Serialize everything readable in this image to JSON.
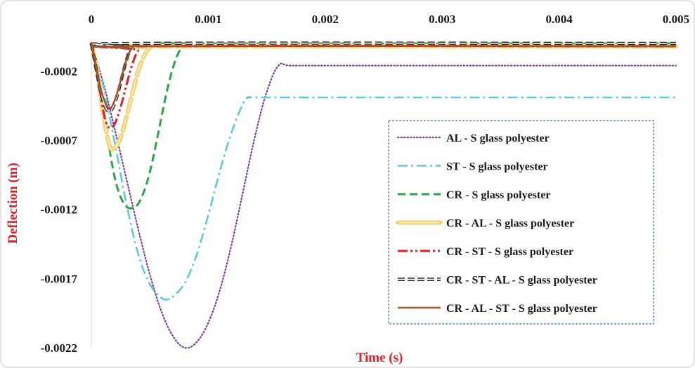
{
  "chart_data": {
    "type": "line",
    "title": "",
    "xlabel": "Time (s)",
    "ylabel": "Deflection (m)",
    "xlim": [
      0,
      0.005
    ],
    "ylim": [
      -0.0022,
      0.0
    ],
    "x_ticks": [
      "0",
      "0.001",
      "0.002",
      "0.003",
      "0.004",
      "0.005"
    ],
    "y_ticks": [
      "-0.0002",
      "-0.0007",
      "-0.0012",
      "-0.0017",
      "-0.0022"
    ],
    "x_tick_values": [
      0,
      0.001,
      0.002,
      0.003,
      0.004,
      0.005
    ],
    "y_tick_values": [
      -0.0002,
      -0.0007,
      -0.0012,
      -0.0017,
      -0.0022
    ],
    "x_axis_position": "top",
    "grid": false,
    "legend_position": "right",
    "colors": {
      "xlabel": "#e31e24",
      "ylabel": "#e31e24",
      "legend_border": "#3d6fc4"
    },
    "series": [
      {
        "name": "AL - S glass polyester",
        "color": "#7b3fa8",
        "style": "dotted",
        "x": [
          0,
          0.0001,
          0.0002,
          0.0003,
          0.0004,
          0.0005,
          0.0006,
          0.0007,
          0.0008,
          0.0009,
          0.001,
          0.0011,
          0.0012,
          0.0013,
          0.0014,
          0.0015,
          0.0016,
          0.0017,
          0.002,
          0.003,
          0.004,
          0.005
        ],
        "y": [
          0,
          -0.00028,
          -0.00062,
          -0.00098,
          -0.00134,
          -0.00167,
          -0.00194,
          -0.00212,
          -0.0022,
          -0.00216,
          -0.00202,
          -0.00178,
          -0.00145,
          -0.00106,
          -0.00067,
          -0.00035,
          -0.00016,
          -0.00016,
          -0.00016,
          -0.00016,
          -0.00016,
          -0.00016
        ]
      },
      {
        "name": "ST - S glass polyester",
        "color": "#5cc8dc",
        "style": "dashdot",
        "x": [
          0,
          0.0001,
          0.0002,
          0.0003,
          0.0004,
          0.0005,
          0.0006,
          0.00066,
          0.0007,
          0.0008,
          0.0009,
          0.001,
          0.0011,
          0.0012,
          0.0013,
          0.00135,
          0.0014,
          0.002,
          0.003,
          0.004,
          0.005
        ],
        "y": [
          0,
          -0.0003,
          -0.00072,
          -0.00116,
          -0.00152,
          -0.00174,
          -0.00184,
          -0.00185,
          -0.00183,
          -0.00173,
          -0.00153,
          -0.00124,
          -0.00092,
          -0.00064,
          -0.00043,
          -0.00039,
          -0.00039,
          -0.00039,
          -0.00039,
          -0.00039,
          -0.00039
        ]
      },
      {
        "name": "CR - S glass polyester",
        "color": "#27a844",
        "style": "dashed",
        "x": [
          0,
          5e-05,
          0.0001,
          0.00015,
          0.0002,
          0.00025,
          0.0003,
          0.00035,
          0.0004,
          0.00045,
          0.0005,
          0.00055,
          0.0006,
          0.00065,
          0.0007,
          0.00075,
          0.0008,
          0.00085,
          0.0009,
          0.005
        ],
        "y": [
          0,
          -0.00018,
          -0.00045,
          -0.00074,
          -0.00097,
          -0.00111,
          -0.00118,
          -0.00119,
          -0.00116,
          -0.00107,
          -0.00093,
          -0.00074,
          -0.00053,
          -0.00033,
          -0.00017,
          -6e-05,
          -1e-05,
          0.0,
          0.0,
          0.0
        ]
      },
      {
        "name": "CR - AL - S glass polyester",
        "color": "#f5c033",
        "style": "dashed-thick",
        "x": [
          0,
          5e-05,
          0.0001,
          0.00015,
          0.00018,
          0.0002,
          0.00025,
          0.0003,
          0.00035,
          0.0004,
          0.00045,
          0.0005,
          0.00055,
          0.005
        ],
        "y": [
          0,
          -0.0002,
          -0.0005,
          -0.00072,
          -0.00077,
          -0.00076,
          -0.00068,
          -0.00053,
          -0.00036,
          -0.0002,
          -9e-05,
          -3e-05,
          -2e-05,
          -2e-05
        ]
      },
      {
        "name": "CR - ST - S glass polyester",
        "color": "#e31e24",
        "style": "dashdotdot",
        "x": [
          0,
          5e-05,
          0.0001,
          0.00013,
          0.00016,
          0.0002,
          0.00025,
          0.0003,
          0.00035,
          0.0004,
          0.00045,
          0.005
        ],
        "y": [
          0,
          -0.00021,
          -0.00048,
          -0.00058,
          -0.00061,
          -0.00058,
          -0.00046,
          -0.0003,
          -0.00015,
          -5e-05,
          -2e-05,
          -2e-05
        ]
      },
      {
        "name": "CR - ST - AL - S glass polyester",
        "color": "#2b2b2b",
        "style": "double-dashed",
        "x": [
          0,
          4e-05,
          8e-05,
          0.00012,
          0.00015,
          0.00018,
          0.00022,
          0.00026,
          0.0003,
          0.00034,
          0.00038,
          0.005
        ],
        "y": [
          0,
          -0.00018,
          -0.00035,
          -0.00046,
          -0.00049,
          -0.00047,
          -0.00038,
          -0.00025,
          -0.00012,
          -3e-05,
          0.0,
          0.0
        ]
      },
      {
        "name": "CR - AL - ST - S glass polyester",
        "color": "#a0522d",
        "style": "solid",
        "x": [
          0,
          4e-05,
          8e-05,
          0.00012,
          0.00015,
          0.00018,
          0.00022,
          0.00026,
          0.0003,
          0.00034,
          0.00038,
          0.005
        ],
        "y": [
          0,
          -0.00017,
          -0.00033,
          -0.00043,
          -0.00047,
          -0.00045,
          -0.00036,
          -0.00024,
          -0.00012,
          -4e-05,
          -2e-05,
          -2e-05
        ]
      }
    ]
  }
}
